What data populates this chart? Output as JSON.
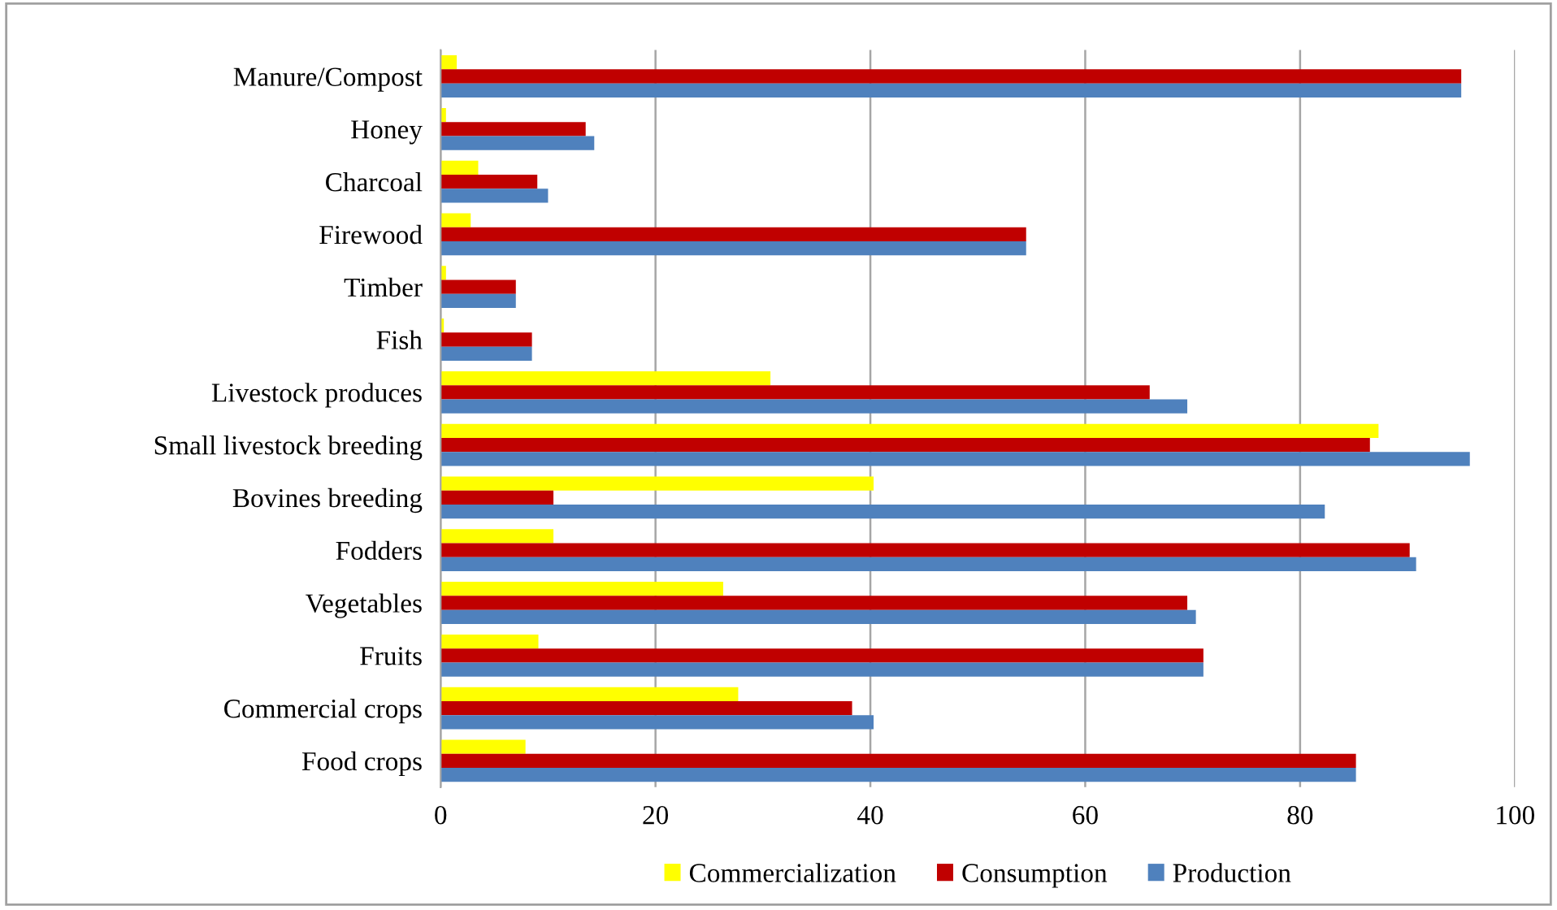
{
  "chart_data": {
    "type": "bar",
    "orientation": "horizontal",
    "categories": [
      "Manure/Compost",
      "Honey",
      "Charcoal",
      "Firewood",
      "Timber",
      "Fish",
      "Livestock produces",
      "Small livestock breeding",
      "Bovines breeding",
      "Fodders",
      "Vegetables",
      "Fruits",
      "Commercial crops",
      "Food crops"
    ],
    "series": [
      {
        "name": "Commercialization",
        "color": "#ffff00",
        "values": [
          1.5,
          0.5,
          3.5,
          2.8,
          0.5,
          0.3,
          30.7,
          87.3,
          40.3,
          10.5,
          26.3,
          9.1,
          27.7,
          7.9
        ]
      },
      {
        "name": "Consumption",
        "color": "#c00000",
        "values": [
          95,
          13.5,
          9,
          54.5,
          7,
          8.5,
          66,
          86.5,
          10.5,
          90.2,
          69.5,
          71,
          38.3,
          85.2
        ]
      },
      {
        "name": "Production",
        "color": "#4f81bd",
        "values": [
          95,
          14.3,
          10,
          54.5,
          7,
          8.5,
          69.5,
          95.8,
          82.3,
          90.8,
          70.3,
          71,
          40.3,
          85.2
        ]
      }
    ],
    "xlim": [
      0,
      100
    ],
    "xticks": [
      0,
      20,
      40,
      60,
      80,
      100
    ],
    "grid": "x",
    "legend": "bottom"
  }
}
